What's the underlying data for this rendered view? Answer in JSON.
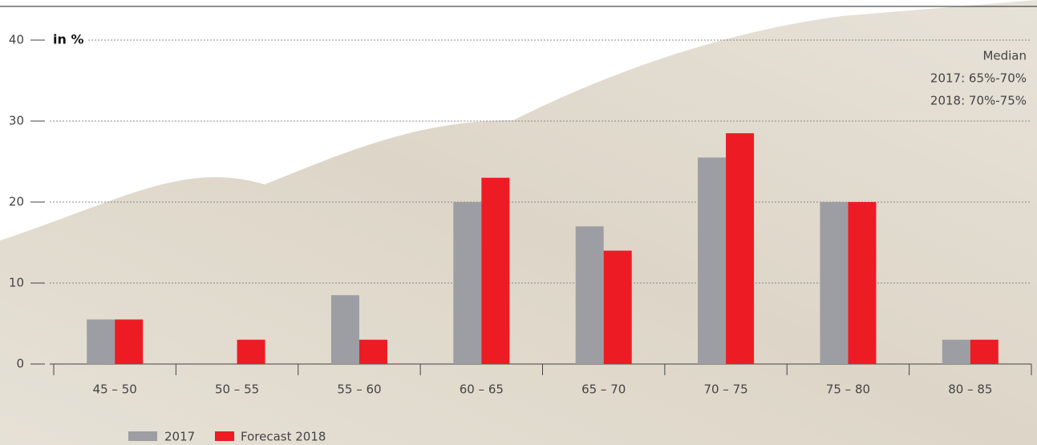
{
  "chart_data": {
    "type": "bar",
    "unit_label": "in %",
    "categories": [
      "45 – 50",
      "50 – 55",
      "55 – 60",
      "60 – 65",
      "65 – 70",
      "70 – 75",
      "75 – 80",
      "80 – 85"
    ],
    "series": [
      {
        "name": "2017",
        "color": "#9d9ea3",
        "values": [
          5.5,
          null,
          8.5,
          20,
          17,
          25.5,
          20,
          3
        ]
      },
      {
        "name": "Forecast 2018",
        "color": "#ed1c24",
        "values": [
          5.5,
          3,
          3,
          23,
          14,
          28.5,
          20,
          3
        ]
      }
    ],
    "annotations": [
      "Median",
      "2017: 65%-70%",
      "2018: 70%-75%"
    ],
    "ylim": [
      0,
      40
    ],
    "yticks": [
      0,
      10,
      20,
      30,
      40
    ],
    "grid": true
  }
}
